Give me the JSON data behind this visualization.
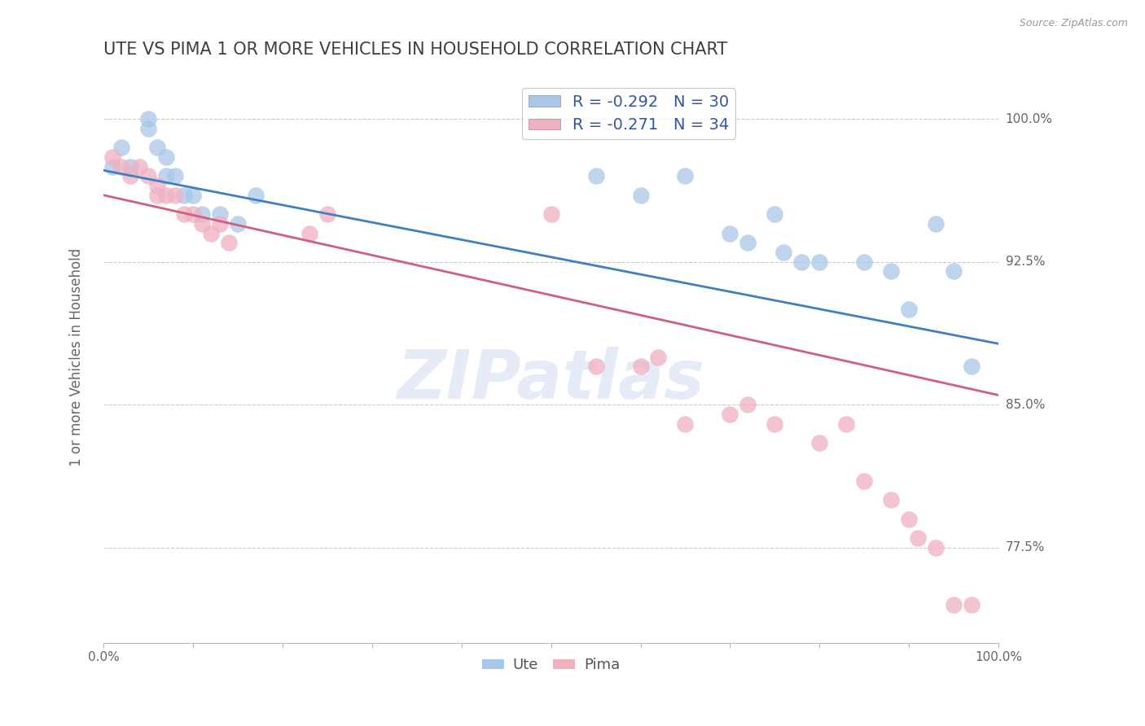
{
  "title": "UTE VS PIMA 1 OR MORE VEHICLES IN HOUSEHOLD CORRELATION CHART",
  "ylabel": "1 or more Vehicles in Household",
  "source": "Source: ZipAtlas.com",
  "watermark": "ZIPatlas",
  "xlim": [
    0.0,
    1.0
  ],
  "ylim": [
    0.725,
    1.025
  ],
  "xticks": [
    0.0,
    0.1,
    0.2,
    0.3,
    0.4,
    0.5,
    0.6,
    0.7,
    0.8,
    0.9,
    1.0
  ],
  "xticklabels": [
    "0.0%",
    "",
    "",
    "",
    "",
    "",
    "",
    "",
    "",
    "",
    "100.0%"
  ],
  "ytick_positions": [
    0.775,
    0.85,
    0.925,
    1.0
  ],
  "ytick_labels": [
    "77.5%",
    "85.0%",
    "92.5%",
    "100.0%"
  ],
  "legend_label_blue": "R = -0.292   N = 30",
  "legend_label_pink": "R = -0.271   N = 34",
  "ute_color": "#A8C8E8",
  "pima_color": "#F0B0C0",
  "blue_line_color": "#4080C0",
  "pink_line_color": "#D06080",
  "grid_color": "#CCCCCC",
  "background_color": "#FFFFFF",
  "ute_x": [
    0.01,
    0.02,
    0.03,
    0.05,
    0.05,
    0.06,
    0.07,
    0.07,
    0.08,
    0.09,
    0.1,
    0.11,
    0.13,
    0.15,
    0.17,
    0.55,
    0.6,
    0.65,
    0.7,
    0.72,
    0.75,
    0.76,
    0.78,
    0.8,
    0.85,
    0.88,
    0.9,
    0.93,
    0.95,
    0.97
  ],
  "ute_y": [
    0.975,
    0.985,
    0.975,
    1.0,
    0.995,
    0.985,
    0.98,
    0.97,
    0.97,
    0.96,
    0.96,
    0.95,
    0.95,
    0.945,
    0.96,
    0.97,
    0.96,
    0.97,
    0.94,
    0.935,
    0.95,
    0.93,
    0.925,
    0.925,
    0.925,
    0.92,
    0.9,
    0.945,
    0.92,
    0.87
  ],
  "pima_x": [
    0.01,
    0.02,
    0.03,
    0.04,
    0.05,
    0.06,
    0.06,
    0.07,
    0.08,
    0.09,
    0.1,
    0.11,
    0.12,
    0.13,
    0.14,
    0.23,
    0.25,
    0.5,
    0.55,
    0.6,
    0.62,
    0.65,
    0.7,
    0.72,
    0.75,
    0.8,
    0.83,
    0.85,
    0.88,
    0.9,
    0.91,
    0.93,
    0.95,
    0.97
  ],
  "pima_y": [
    0.98,
    0.975,
    0.97,
    0.975,
    0.97,
    0.965,
    0.96,
    0.96,
    0.96,
    0.95,
    0.95,
    0.945,
    0.94,
    0.945,
    0.935,
    0.94,
    0.95,
    0.95,
    0.87,
    0.87,
    0.875,
    0.84,
    0.845,
    0.85,
    0.84,
    0.83,
    0.84,
    0.81,
    0.8,
    0.79,
    0.78,
    0.775,
    0.745,
    0.745
  ],
  "legend_ute_label": "Ute",
  "legend_pima_label": "Pima",
  "title_color": "#404040",
  "label_color": "#3355AA",
  "watermark_color": "#C8D4F0",
  "watermark_alpha": 0.45,
  "blue_line_start_y": 0.973,
  "blue_line_end_y": 0.882,
  "pink_line_start_y": 0.96,
  "pink_line_end_y": 0.855
}
